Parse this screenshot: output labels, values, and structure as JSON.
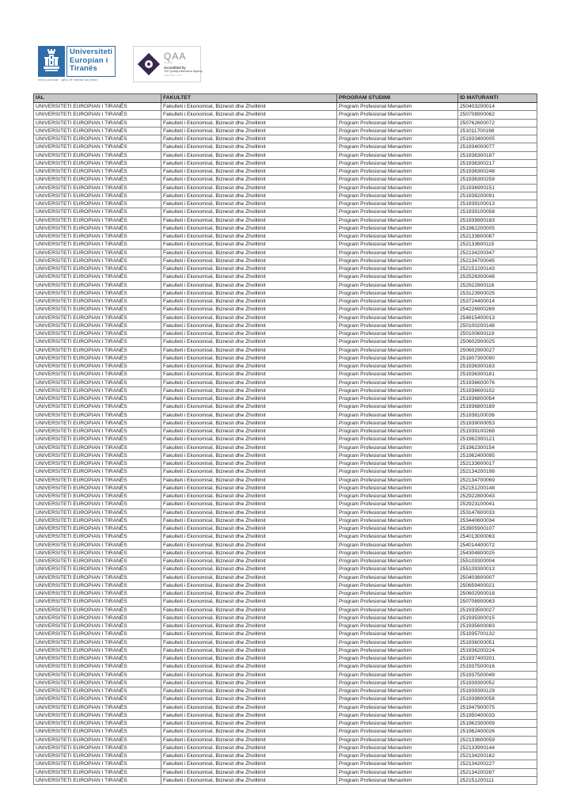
{
  "logos": {
    "uet": {
      "line1": "Universiteti",
      "line2": "Europian i",
      "line3": "Tiranës",
      "tagline": "nxito promuat · gëzo të mëdha sa peson",
      "brand_color": "#2e6da8"
    },
    "qaa": {
      "acronym": "QAA",
      "sub": "Certified",
      "accredited_by": "Accredited by",
      "agency": "The Quality Assurance Agency",
      "validity": "valid 2022 - 2027",
      "diamond_color": "#37294e"
    }
  },
  "table": {
    "columns": [
      "IAL",
      "FAKULTET",
      "PROGRAM STUDIMI",
      "ID MATURANTI"
    ],
    "row_ial": "UNIVERSITETI EUROPIAN I TIRANËS",
    "row_fakultet": "Fakulteti i Ekonomisë, Biznesit dhe Zhvillimit",
    "row_program": "Program Profesional  Menaxhim",
    "header_bg": "#c8c8c8",
    "ids": [
      "250403200014",
      "250708900062",
      "250762600072",
      "251011700198",
      "251933400005",
      "251934000077",
      "251936300187",
      "251936300217",
      "251936300248",
      "251936300258",
      "251936900151",
      "251938200091",
      "251939100013",
      "251939100058",
      "251939900183",
      "251962200005",
      "252133600087",
      "252133600115",
      "252134200347",
      "252134700045",
      "252151200143",
      "252526300048",
      "252922800116",
      "253123900025",
      "253724400014",
      "254226900269",
      "254815400013",
      "250100200148",
      "250100600119",
      "250602900025",
      "250602900027",
      "251807300090",
      "251936300163",
      "251936300181",
      "251936600076",
      "251936600102",
      "251936800054",
      "251936800189",
      "251938100036",
      "251939000053",
      "251939100268",
      "251962300121",
      "251962300154",
      "251962400095",
      "252133600017",
      "252134200198",
      "252134700069",
      "252151200148",
      "252922800043",
      "252923100041",
      "253147600033",
      "253440600034",
      "253905900107",
      "254013000063",
      "254014400072",
      "254304800025",
      "255109300004",
      "255109300013",
      "250403800007",
      "250659400021",
      "250602900018",
      "250708900063",
      "251933500027",
      "251935300015",
      "251935600083",
      "251935700132",
      "251936000051",
      "251936200224",
      "251937400201",
      "251937500016",
      "251937500049",
      "251939300052",
      "251939300129",
      "251939800058",
      "251947900075",
      "251950400033",
      "251962300009",
      "251962400026",
      "252133600059",
      "252133900144",
      "252134200162",
      "252134200227",
      "252134200287",
      "252151200111"
    ]
  }
}
